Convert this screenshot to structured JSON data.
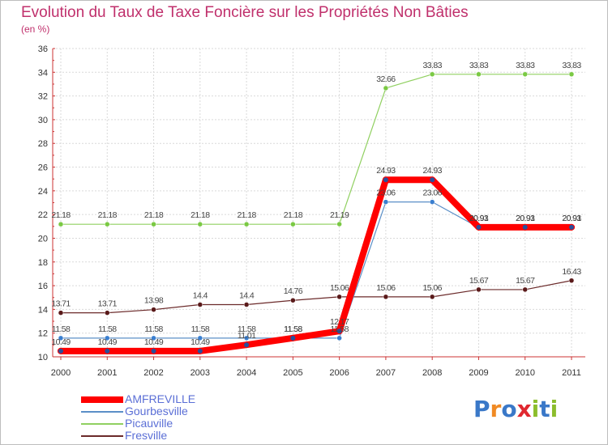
{
  "header": {
    "title": "Evolution du Taux de Taxe Foncière sur les Propriétés Non Bâties",
    "subtitle": "(en %)"
  },
  "logo": {
    "text": "Proxiti",
    "letters": [
      "P",
      "r",
      "o",
      "x",
      "i",
      "t",
      "i"
    ]
  },
  "chart_data": {
    "type": "line",
    "title": "Evolution du Taux de Taxe Foncière sur les Propriétés Non Bâties",
    "ylabel": "(en %)",
    "xlabel": "",
    "x": [
      "2000",
      "2001",
      "2002",
      "2003",
      "2004",
      "2005",
      "2006",
      "2007",
      "2008",
      "2009",
      "2010",
      "2011"
    ],
    "ylim": [
      10,
      36
    ],
    "yticks": [
      10,
      12,
      14,
      16,
      18,
      20,
      22,
      24,
      26,
      28,
      30,
      32,
      34,
      36
    ],
    "ytick_labels": [
      "10",
      "12",
      "14",
      "16",
      "18",
      "20",
      "22",
      "24",
      "26",
      "28",
      "30",
      "32",
      "34",
      "36"
    ],
    "grid": true,
    "legend_position": "bottom-left",
    "series": [
      {
        "name": "AMFREVILLE",
        "color": "#ff0000",
        "values": [
          10.49,
          10.49,
          10.49,
          10.49,
          11.01,
          11.58,
          12.17,
          24.93,
          24.93,
          20.93,
          20.93,
          20.93
        ],
        "labels": [
          "10.49",
          "10.49",
          "10.49",
          "10.49",
          "11.01",
          "11.58",
          "12.17",
          "24.93",
          "24.93",
          "20.93",
          "20.93",
          "20.93"
        ]
      },
      {
        "name": "Gourbesville",
        "color": "#5b8fc7",
        "values": [
          11.58,
          11.58,
          11.58,
          11.58,
          11.58,
          11.58,
          11.58,
          23.06,
          23.06,
          20.91,
          20.91,
          20.91
        ],
        "labels": [
          "11.58",
          "11.58",
          "11.58",
          "11.58",
          "11.58",
          "11.58",
          "11.58",
          "23.06",
          "23.06",
          "20.91",
          "20.91",
          "20.91"
        ]
      },
      {
        "name": "Picauville",
        "color": "#90d060",
        "values": [
          21.18,
          21.18,
          21.18,
          21.18,
          21.18,
          21.18,
          21.19,
          32.66,
          33.83,
          33.83,
          33.83,
          33.83
        ],
        "labels": [
          "21.18",
          "21.18",
          "21.18",
          "21.18",
          "21.18",
          "21.18",
          "21.19",
          "32.66",
          "33.83",
          "33.83",
          "33.83",
          "33.83"
        ]
      },
      {
        "name": "Fresville",
        "color": "#6b2a2a",
        "values": [
          13.71,
          13.71,
          13.98,
          14.4,
          14.4,
          14.76,
          15.06,
          15.06,
          15.06,
          15.67,
          15.67,
          16.43
        ],
        "labels": [
          "13.71",
          "13.71",
          "13.98",
          "14.4",
          "14.4",
          "14.76",
          "15.06",
          "15.06",
          "15.06",
          "15.67",
          "15.67",
          "16.43"
        ]
      }
    ]
  }
}
